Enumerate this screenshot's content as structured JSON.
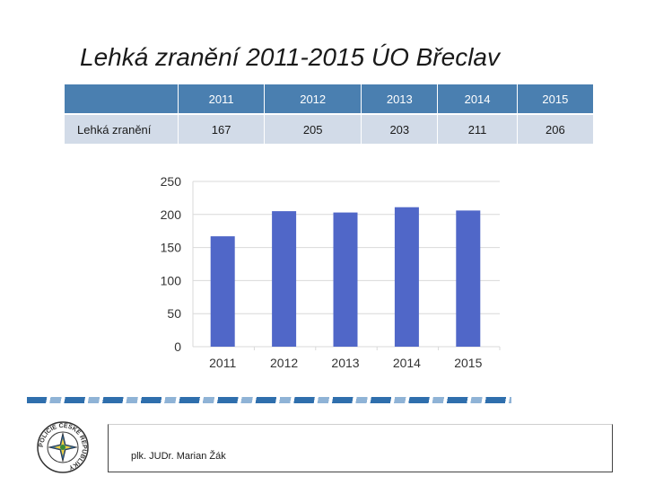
{
  "title": "Lehká zranění 2011-2015 ÚO Břeclav",
  "table": {
    "header_blank": "",
    "years": [
      "2011",
      "2012",
      "2013",
      "2014",
      "2015"
    ],
    "row_label": "Lehká zranění",
    "values": [
      "167",
      "205",
      "203",
      "211",
      "206"
    ]
  },
  "chart_data": {
    "type": "bar",
    "title": "",
    "xlabel": "",
    "ylabel": "",
    "categories": [
      "2011",
      "2012",
      "2013",
      "2014",
      "2015"
    ],
    "values": [
      167,
      205,
      203,
      211,
      206
    ],
    "ylim": [
      0,
      250
    ],
    "yticks": [
      0,
      50,
      100,
      150,
      200,
      250
    ],
    "grid": true,
    "bar_color": "#5067c8"
  },
  "footer": {
    "name": "plk. JUDr. Marian Žák"
  },
  "logo": {
    "ring_text": "POLICIE ČESKÉ REPUBLIKY"
  }
}
